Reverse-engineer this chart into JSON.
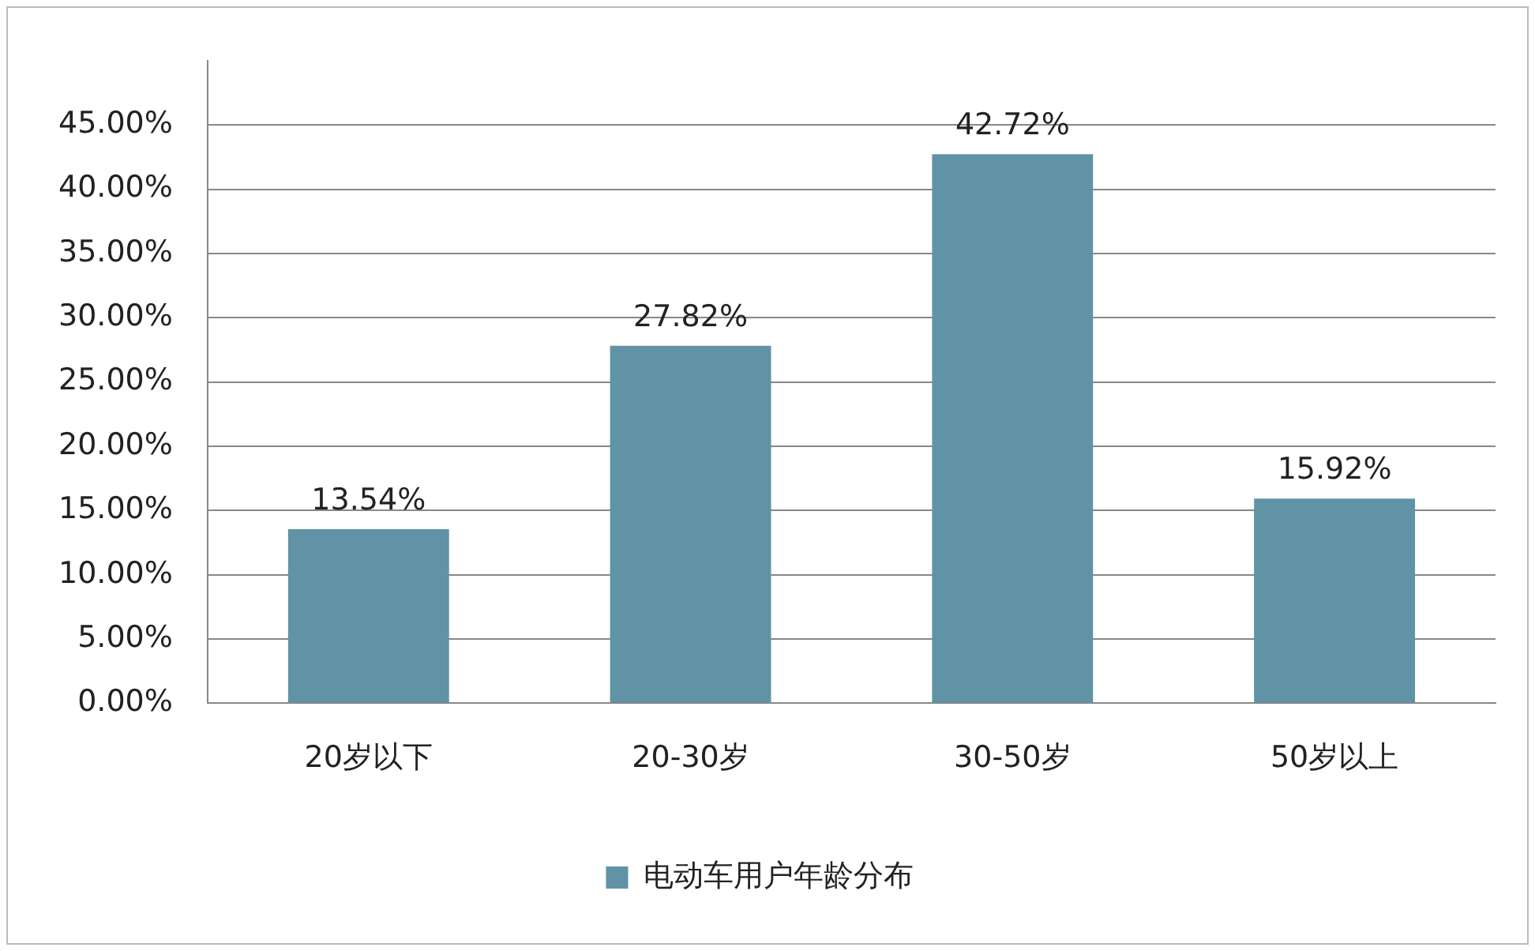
{
  "chart_data": {
    "type": "bar",
    "categories": [
      "20岁以下",
      "20-30岁",
      "30-50岁",
      "50岁以上"
    ],
    "series": [
      {
        "name": "电动车用户年龄分布",
        "color": "#5f93a5",
        "values": [
          13.54,
          27.82,
          42.72,
          15.92
        ],
        "value_labels": [
          "13.54%",
          "27.82%",
          "42.72%",
          "15.92%"
        ]
      }
    ],
    "ylim": [
      0,
      50
    ],
    "yticks": [
      {
        "value": 0,
        "label": "0.00%"
      },
      {
        "value": 5,
        "label": "5.00%"
      },
      {
        "value": 10,
        "label": "10.00%"
      },
      {
        "value": 15,
        "label": "15.00%"
      },
      {
        "value": 20,
        "label": "20.00%"
      },
      {
        "value": 25,
        "label": "25.00%"
      },
      {
        "value": 30,
        "label": "30.00%"
      },
      {
        "value": 35,
        "label": "35.00%"
      },
      {
        "value": 40,
        "label": "40.00%"
      },
      {
        "value": 45,
        "label": "45.00%"
      }
    ],
    "grid": "y",
    "legend": "bottom"
  }
}
